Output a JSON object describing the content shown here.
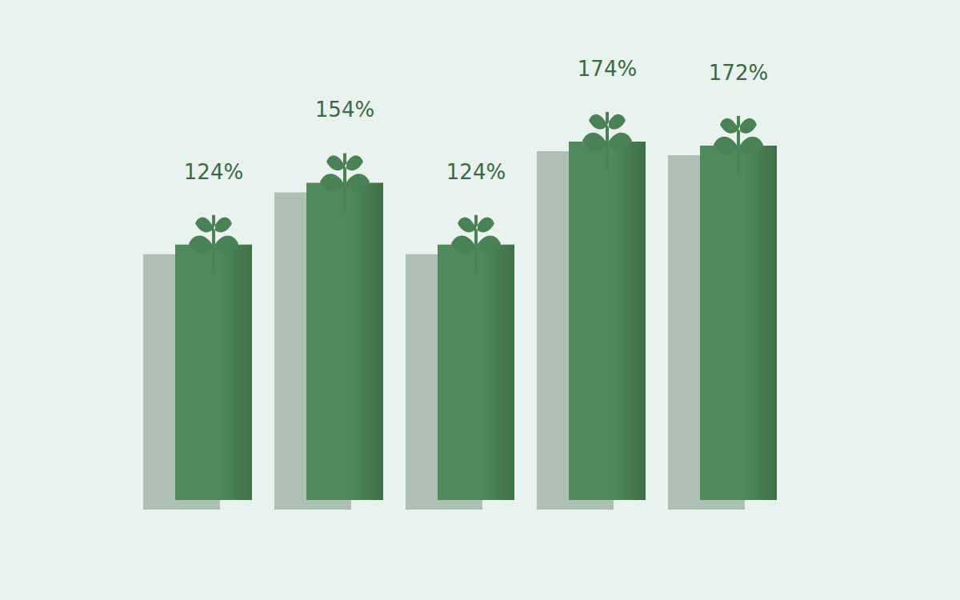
{
  "chart_data": {
    "type": "bar",
    "categories": [
      null,
      null,
      null,
      null,
      null
    ],
    "values": [
      124,
      154,
      124,
      174,
      172
    ],
    "color": "#4f8a5c",
    "ylim": [
      0,
      200
    ],
    "data_labels": true,
    "tick_labels": false
  }
}
